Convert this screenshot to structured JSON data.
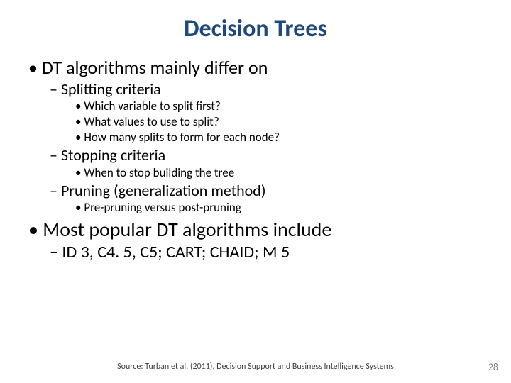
{
  "title": {
    "text": "Decision Trees",
    "color": "#1f497d",
    "fontsize": 34
  },
  "colors": {
    "background": "#ffffff",
    "body_text": "#000000",
    "source_text": "#404040",
    "pagenum_text": "#808080"
  },
  "bullets_top": {
    "item1": {
      "text": "DT algorithms mainly differ on",
      "sub": {
        "a": {
          "text": "Splitting criteria",
          "sub": {
            "i": "Which variable to split first?",
            "ii": "What values to use to split?",
            "iii": "How many splits to form for each node?"
          }
        },
        "b": {
          "text": "Stopping criteria",
          "sub": {
            "i": "When to stop building the tree"
          }
        },
        "c": {
          "text": "Pruning (generalization method)",
          "sub": {
            "i": "Pre-pruning versus post-pruning"
          }
        }
      }
    },
    "item2": {
      "text": "Most popular DT algorithms include",
      "sub": {
        "a": {
          "text": "ID 3, C4. 5, C5; CART; CHAID; M 5"
        }
      }
    }
  },
  "source": "Source:  Turban et al. (2011), Decision Support and Business Intelligence Systems",
  "page_number": "28"
}
